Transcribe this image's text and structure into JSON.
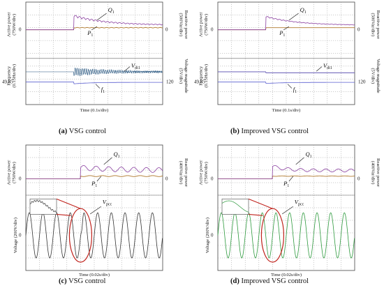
{
  "panels": [
    {
      "id": "a",
      "caption_letter": "(a)",
      "caption_text": "VSG control",
      "left_top_label": "Active power\n(750W/div)",
      "right_top_label": "Reactive power\n(500Var/div)",
      "left_bottom_label": "Frequency\n(0.15Hz/div)",
      "right_bottom_label": "Voltage magnitude\n(5V/div)",
      "zero_left": "0",
      "zero_right": "0",
      "bottom_left_value": "49.85",
      "bottom_right_value": "120",
      "x_label": "Time (0.1s/div)",
      "traces": [
        "Q1",
        "P1",
        "Vdi1",
        "f1"
      ],
      "trace_labels": {
        "Q": "Q",
        "P": "P",
        "V": "V",
        "f": "f",
        "q_sub": "1",
        "p_sub": "1",
        "v_sub": "di1",
        "f_sub": "1"
      }
    },
    {
      "id": "b",
      "caption_letter": "(b)",
      "caption_text": "Improved VSG control",
      "left_top_label": "Active power\n(750W/div)",
      "right_top_label": "Reactive power\n(500Var/div)",
      "left_bottom_label": "Frequency\n(0.15Hz/div)",
      "right_bottom_label": "Voltage magnitude\n(5V/div)",
      "zero_left": "0",
      "zero_right": "0",
      "bottom_left_value": "49.85",
      "bottom_right_value": "120",
      "x_label": "Time (0.1s/div)",
      "trace_labels": {
        "Q": "Q",
        "P": "P",
        "V": "V",
        "f": "f",
        "q_sub": "1",
        "p_sub": "1",
        "v_sub": "di1",
        "f_sub": "1"
      }
    },
    {
      "id": "c",
      "caption_letter": "(c)",
      "caption_text": "VSG control",
      "left_top_label": "Active power\n(750W/div)",
      "right_top_label": "Reactive power\n(400Var/div)",
      "left_bottom_label": "Voltage (200V/div)",
      "zero_left": "0",
      "zero_right": "0",
      "zero_bottom": "0",
      "x_label": "Time (0.02s/div)",
      "trace_labels": {
        "Q": "Q",
        "P": "P",
        "V": "V",
        "q_sub": "1",
        "p_sub": "1",
        "v_sub": "pcc"
      }
    },
    {
      "id": "d",
      "caption_letter": "(d)",
      "caption_text": "Improved VSG control",
      "left_top_label": "Active power\n(750W/div)",
      "right_top_label": "Reactive power\n(400Var/div)",
      "left_bottom_label": "Voltage (200V/div)",
      "zero_left": "0",
      "zero_right": "0",
      "zero_bottom": "0",
      "x_label": "Time (0.02s/div)",
      "trace_labels": {
        "Q": "Q",
        "P": "P",
        "V": "V",
        "q_sub": "1",
        "p_sub": "1",
        "v_sub": "pcc"
      }
    }
  ],
  "colors": {
    "grid": "#9a9a9a",
    "q_trace": "#8a3fa0",
    "p_trace": "#b07a2e",
    "v_trace_a": "#1f4f7a",
    "f_trace": "#5a5fd0",
    "v_trace_b": "#6a5fb8",
    "wave_c": "#333333",
    "wave_d": "#2e9a3e",
    "zoom_red": "#c0221c"
  }
}
